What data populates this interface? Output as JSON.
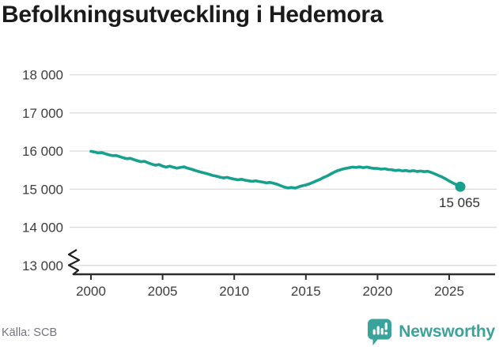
{
  "title": "Befolkningsutveckling i Hedemora",
  "footer": {
    "source": "Källa: SCB",
    "brand": "Newsworthy"
  },
  "colors": {
    "line": "#17a08e",
    "logo_teal": "#3aa39b",
    "grid": "#dadada",
    "axis": "#2d2d2d",
    "title_text": "#1b1b1b",
    "label_text": "#3d3d3d",
    "source_text": "#73737d"
  },
  "chart_data": {
    "type": "line",
    "title": "Befolkningsutveckling i Hedemora",
    "source": "Källa: SCB",
    "grid": "horizontal",
    "legend_position": "none",
    "broken_y_axis": true,
    "end_label": "15 065",
    "end_point": [
      2025.77,
      15065
    ],
    "x_axis": {
      "ticks": [
        2000,
        2005,
        2010,
        2015,
        2020,
        2025
      ],
      "range": [
        1999.5,
        2026.3
      ]
    },
    "y_axis": {
      "tick_labels": [
        "18 000",
        "17 000",
        "16 000",
        "15 000",
        "14 000",
        "13 000"
      ],
      "tick_values": [
        18000,
        17000,
        16000,
        15000,
        14000,
        13000
      ],
      "range": [
        13000,
        18000
      ]
    },
    "series": [
      {
        "name": "Befolkning",
        "points": [
          [
            2000.0,
            15995
          ],
          [
            2000.25,
            15975
          ],
          [
            2000.5,
            15950
          ],
          [
            2000.75,
            15960
          ],
          [
            2001.0,
            15930
          ],
          [
            2001.25,
            15900
          ],
          [
            2001.5,
            15880
          ],
          [
            2001.75,
            15885
          ],
          [
            2002.0,
            15855
          ],
          [
            2002.25,
            15825
          ],
          [
            2002.5,
            15800
          ],
          [
            2002.75,
            15810
          ],
          [
            2003.0,
            15775
          ],
          [
            2003.25,
            15745
          ],
          [
            2003.5,
            15720
          ],
          [
            2003.75,
            15730
          ],
          [
            2004.0,
            15690
          ],
          [
            2004.25,
            15655
          ],
          [
            2004.5,
            15630
          ],
          [
            2004.75,
            15645
          ],
          [
            2005.0,
            15605
          ],
          [
            2005.25,
            15580
          ],
          [
            2005.5,
            15605
          ],
          [
            2005.75,
            15575
          ],
          [
            2006.0,
            15550
          ],
          [
            2006.25,
            15570
          ],
          [
            2006.5,
            15585
          ],
          [
            2006.75,
            15550
          ],
          [
            2007.0,
            15525
          ],
          [
            2007.25,
            15495
          ],
          [
            2007.5,
            15465
          ],
          [
            2007.75,
            15440
          ],
          [
            2008.0,
            15415
          ],
          [
            2008.25,
            15390
          ],
          [
            2008.5,
            15360
          ],
          [
            2008.75,
            15340
          ],
          [
            2009.0,
            15315
          ],
          [
            2009.25,
            15295
          ],
          [
            2009.5,
            15310
          ],
          [
            2009.75,
            15285
          ],
          [
            2010.0,
            15265
          ],
          [
            2010.25,
            15245
          ],
          [
            2010.5,
            15260
          ],
          [
            2010.75,
            15235
          ],
          [
            2011.0,
            15220
          ],
          [
            2011.25,
            15205
          ],
          [
            2011.5,
            15220
          ],
          [
            2011.75,
            15200
          ],
          [
            2012.0,
            15185
          ],
          [
            2012.25,
            15165
          ],
          [
            2012.5,
            15180
          ],
          [
            2012.75,
            15155
          ],
          [
            2013.0,
            15130
          ],
          [
            2013.25,
            15090
          ],
          [
            2013.5,
            15055
          ],
          [
            2013.75,
            15035
          ],
          [
            2014.0,
            15045
          ],
          [
            2014.25,
            15030
          ],
          [
            2014.5,
            15060
          ],
          [
            2014.75,
            15090
          ],
          [
            2015.0,
            15110
          ],
          [
            2015.25,
            15140
          ],
          [
            2015.5,
            15180
          ],
          [
            2015.75,
            15220
          ],
          [
            2016.0,
            15260
          ],
          [
            2016.25,
            15310
          ],
          [
            2016.5,
            15350
          ],
          [
            2016.75,
            15400
          ],
          [
            2017.0,
            15450
          ],
          [
            2017.25,
            15490
          ],
          [
            2017.5,
            15520
          ],
          [
            2017.75,
            15545
          ],
          [
            2018.0,
            15560
          ],
          [
            2018.25,
            15580
          ],
          [
            2018.5,
            15570
          ],
          [
            2018.75,
            15585
          ],
          [
            2019.0,
            15565
          ],
          [
            2019.25,
            15580
          ],
          [
            2019.5,
            15560
          ],
          [
            2019.75,
            15545
          ],
          [
            2020.0,
            15545
          ],
          [
            2020.25,
            15525
          ],
          [
            2020.5,
            15535
          ],
          [
            2020.75,
            15515
          ],
          [
            2021.0,
            15510
          ],
          [
            2021.25,
            15490
          ],
          [
            2021.5,
            15500
          ],
          [
            2021.75,
            15480
          ],
          [
            2022.0,
            15490
          ],
          [
            2022.25,
            15470
          ],
          [
            2022.5,
            15485
          ],
          [
            2022.75,
            15465
          ],
          [
            2023.0,
            15475
          ],
          [
            2023.25,
            15460
          ],
          [
            2023.5,
            15470
          ],
          [
            2023.75,
            15440
          ],
          [
            2024.0,
            15400
          ],
          [
            2024.25,
            15360
          ],
          [
            2024.5,
            15320
          ],
          [
            2024.75,
            15270
          ],
          [
            2025.0,
            15215
          ],
          [
            2025.25,
            15165
          ],
          [
            2025.5,
            15120
          ],
          [
            2025.77,
            15065
          ]
        ]
      }
    ]
  }
}
